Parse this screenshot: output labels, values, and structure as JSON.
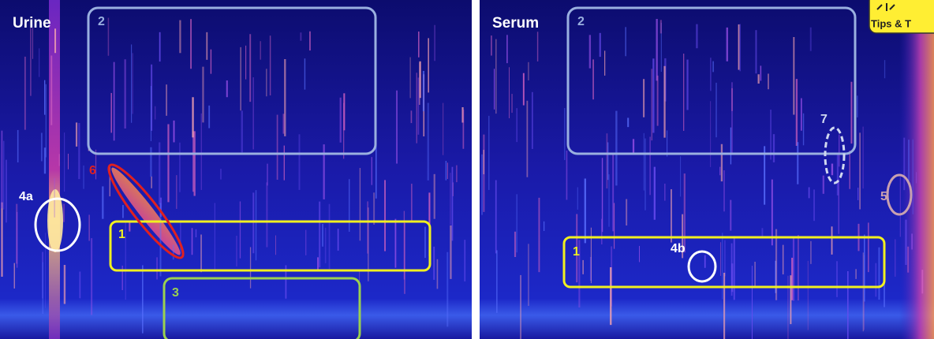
{
  "panels": [
    {
      "title": "Urine",
      "regions": [
        {
          "label": "2"
        },
        {
          "label": "1"
        },
        {
          "label": "3"
        },
        {
          "label": "4a"
        },
        {
          "label": "6"
        }
      ]
    },
    {
      "title": "Serum",
      "regions": [
        {
          "label": "2"
        },
        {
          "label": "7"
        },
        {
          "label": "5"
        },
        {
          "label": "1"
        },
        {
          "label": "4b"
        }
      ]
    }
  ],
  "badge": {
    "text": "Tips & T"
  }
}
